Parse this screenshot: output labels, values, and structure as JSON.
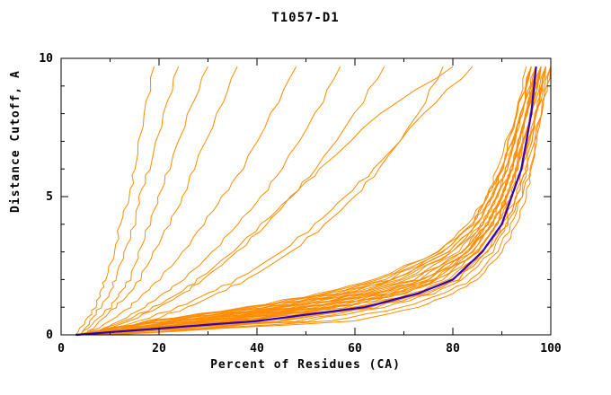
{
  "page": {
    "background": "#ffffff"
  },
  "chart_data": {
    "type": "line",
    "title": "T1057-D1",
    "xlabel": "Percent of Residues (CA)",
    "ylabel": "Distance Cutoff, A",
    "xlim": [
      0,
      100
    ],
    "ylim": [
      0,
      10
    ],
    "x_major_ticks": [
      0,
      20,
      40,
      60,
      80,
      100
    ],
    "x_minor_step": 10,
    "y_major_ticks": [
      0,
      5,
      10
    ],
    "y_minor_step": 1,
    "grid": false,
    "legend": "none",
    "axis_color": "#000000",
    "model_color": "#ff8c00",
    "highlight_color": "#3300bb",
    "cutoffs": [
      0,
      0.5,
      1,
      1.5,
      2,
      3,
      4,
      5,
      6,
      8,
      9.7
    ],
    "models": [
      [
        3,
        25,
        45,
        60,
        70,
        80,
        85,
        88,
        90,
        93,
        95
      ],
      [
        4,
        30,
        50,
        65,
        74,
        83,
        87,
        90,
        92,
        95,
        97
      ],
      [
        5,
        35,
        55,
        68,
        76,
        85,
        89,
        91,
        93,
        96,
        98
      ],
      [
        6,
        40,
        60,
        72,
        79,
        86,
        90,
        92,
        94,
        97,
        99
      ],
      [
        3,
        20,
        40,
        55,
        66,
        78,
        84,
        87,
        90,
        94,
        96
      ],
      [
        7,
        45,
        63,
        74,
        81,
        87,
        91,
        93,
        95,
        97,
        99
      ],
      [
        4,
        28,
        48,
        62,
        72,
        82,
        86,
        89,
        91,
        94,
        96
      ],
      [
        5,
        33,
        53,
        67,
        75,
        84,
        88,
        91,
        93,
        95,
        97
      ],
      [
        6,
        38,
        58,
        70,
        78,
        85,
        89,
        92,
        94,
        96,
        98
      ],
      [
        8,
        50,
        66,
        76,
        82,
        88,
        91,
        94,
        95,
        98,
        100
      ],
      [
        3,
        22,
        42,
        57,
        68,
        79,
        85,
        88,
        91,
        94,
        97
      ],
      [
        4,
        26,
        46,
        61,
        71,
        81,
        86,
        89,
        92,
        95,
        98
      ],
      [
        5,
        31,
        51,
        65,
        74,
        83,
        88,
        90,
        92,
        95,
        97
      ],
      [
        6,
        36,
        56,
        69,
        77,
        85,
        89,
        91,
        93,
        96,
        98
      ],
      [
        7,
        42,
        61,
        73,
        80,
        86,
        90,
        93,
        94,
        97,
        99
      ],
      [
        3,
        18,
        38,
        53,
        64,
        77,
        83,
        87,
        89,
        93,
        96
      ],
      [
        4,
        24,
        44,
        59,
        69,
        80,
        86,
        89,
        91,
        94,
        97
      ],
      [
        5,
        29,
        49,
        63,
        73,
        82,
        87,
        90,
        92,
        95,
        98
      ],
      [
        6,
        34,
        54,
        68,
        76,
        84,
        88,
        91,
        93,
        96,
        99
      ],
      [
        8,
        48,
        64,
        75,
        81,
        87,
        91,
        93,
        95,
        97,
        100
      ],
      [
        3,
        21,
        41,
        56,
        67,
        78,
        84,
        88,
        90,
        94,
        96
      ],
      [
        4,
        27,
        47,
        62,
        72,
        82,
        87,
        90,
        92,
        95,
        97
      ],
      [
        5,
        32,
        52,
        66,
        75,
        83,
        88,
        91,
        93,
        95,
        98
      ],
      [
        7,
        44,
        62,
        73,
        80,
        87,
        90,
        92,
        94,
        97,
        99
      ],
      [
        9,
        55,
        70,
        78,
        84,
        89,
        92,
        94,
        96,
        98,
        100
      ],
      [
        4,
        23,
        43,
        58,
        68,
        79,
        85,
        88,
        91,
        94,
        97
      ],
      [
        5,
        30,
        50,
        64,
        74,
        83,
        87,
        90,
        92,
        95,
        98
      ],
      [
        6,
        37,
        57,
        70,
        77,
        85,
        89,
        92,
        93,
        96,
        98
      ],
      [
        3,
        19,
        39,
        54,
        65,
        77,
        84,
        87,
        90,
        93,
        96
      ],
      [
        10,
        60,
        73,
        80,
        85,
        90,
        93,
        95,
        96,
        98,
        100
      ],
      [
        3,
        5,
        7,
        8,
        9,
        11,
        12,
        14,
        15,
        17,
        19
      ],
      [
        4,
        6,
        8,
        10,
        11,
        13,
        15,
        16,
        18,
        21,
        24
      ],
      [
        4,
        7,
        10,
        12,
        14,
        16,
        18,
        20,
        22,
        26,
        30
      ],
      [
        5,
        8,
        11,
        14,
        16,
        19,
        22,
        25,
        27,
        32,
        36
      ],
      [
        5,
        10,
        14,
        17,
        20,
        25,
        29,
        33,
        37,
        43,
        48
      ],
      [
        6,
        12,
        17,
        21,
        25,
        31,
        36,
        41,
        45,
        52,
        57
      ],
      [
        6,
        14,
        20,
        25,
        29,
        36,
        42,
        47,
        52,
        60,
        66
      ],
      [
        7,
        18,
        26,
        32,
        38,
        47,
        54,
        60,
        65,
        73,
        78
      ],
      [
        6,
        16,
        24,
        30,
        36,
        45,
        52,
        58,
        64,
        74,
        84
      ],
      [
        5,
        13,
        19,
        24,
        28,
        35,
        41,
        47,
        53,
        65,
        80
      ]
    ],
    "highlight": [
      3,
      40,
      62,
      73,
      80,
      86,
      90,
      92,
      94,
      96,
      97
    ]
  }
}
